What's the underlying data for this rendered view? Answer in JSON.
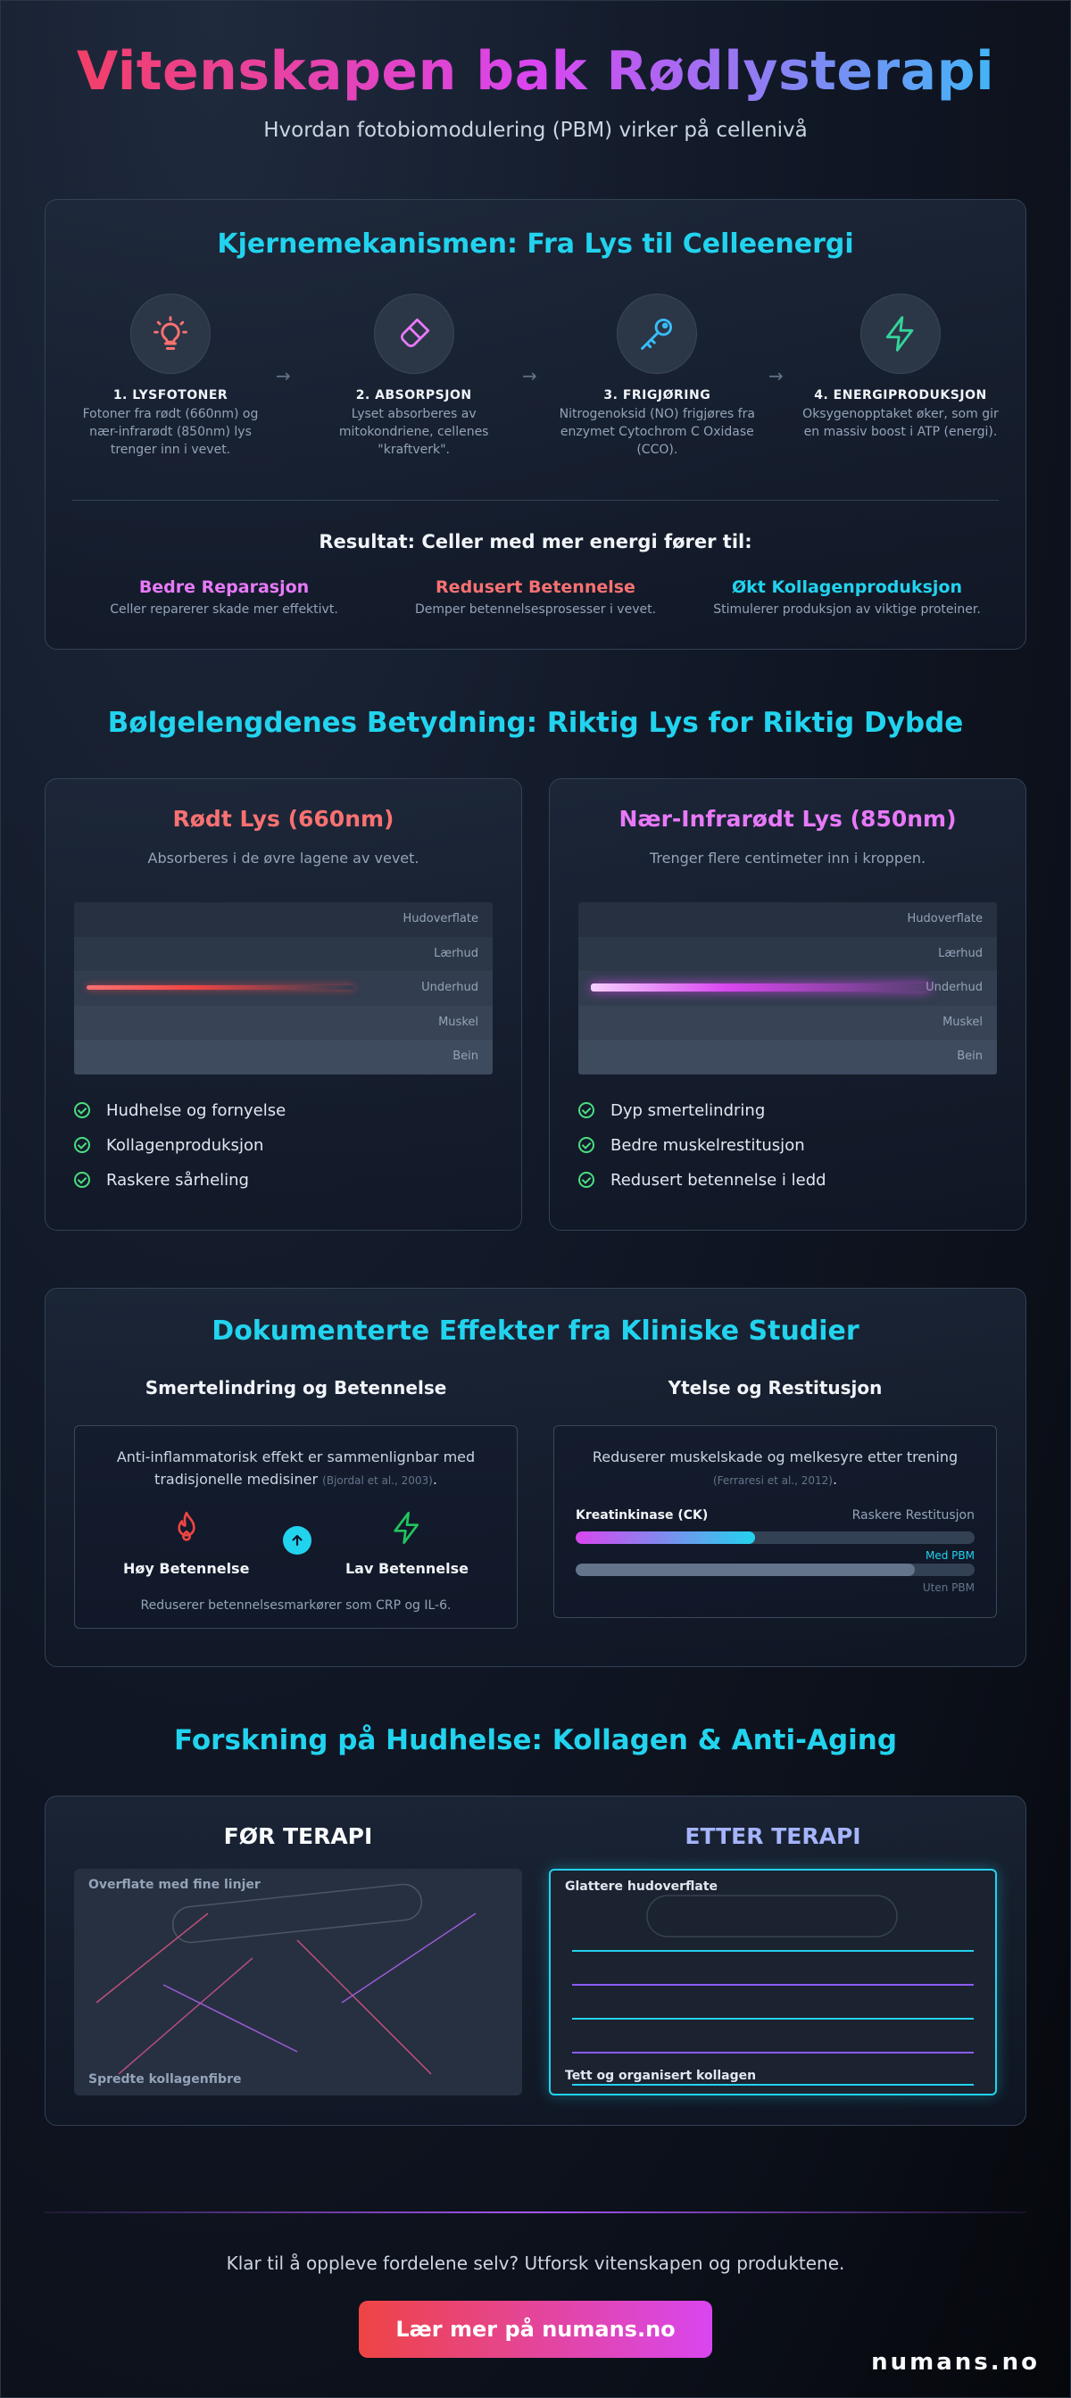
{
  "header": {
    "title": "Vitenskapen bak Rødlysterapi",
    "subtitle": "Hvordan fotobiomodulering (PBM) virker på cellenivå"
  },
  "mechanism": {
    "title": "Kjernemekanismen: Fra Lys til Celleenergi",
    "steps": [
      {
        "icon": "lightbulb-icon",
        "color": "#f87171",
        "title": "1. LYSFOTONER",
        "text": "Fotoner fra rødt (660nm) og nær-infrarødt (850nm) lys trenger inn i vevet."
      },
      {
        "icon": "eraser-icon",
        "color": "#e879f9",
        "title": "2. ABSORPSJON",
        "text": "Lyset absorberes av mitokondriene, cellenes \"kraftverk\"."
      },
      {
        "icon": "key-icon",
        "color": "#38bdf8",
        "title": "3. FRIGJØRING",
        "text": "Nitrogenoksid (NO) frigjøres fra enzymet Cytochrom C Oxidase (CCO)."
      },
      {
        "icon": "lightning-icon",
        "color": "#34d399",
        "title": "4. ENERGIPRODUKSJON",
        "text": "Oksygenopptaket øker, som gir en massiv boost i ATP (energi)."
      }
    ],
    "result_title": "Resultat: Celler med mer energi fører til:",
    "results": [
      {
        "name": "Bedre Reparasjon",
        "desc": "Celler reparerer skade mer effektivt.",
        "color": "#e879f9"
      },
      {
        "name": "Redusert Betennelse",
        "desc": "Demper betennelsesprosesser i vevet.",
        "color": "#f87171"
      },
      {
        "name": "Økt Kollagenproduksjon",
        "desc": "Stimulerer produksjon av viktige proteiner.",
        "color": "#22d3ee"
      }
    ]
  },
  "wavelengths": {
    "title": "Bølgelengdenes Betydning: Riktig Lys for Riktig Dybde",
    "layers": [
      "Hudoverflate",
      "Lærhud",
      "Underhud",
      "Muskel",
      "Bein"
    ],
    "red": {
      "name": "Rødt Lys (660nm)",
      "color": "#f87171",
      "desc": "Absorberes i de øvre lagene av vevet.",
      "benefits": [
        "Hudhelse og fornyelse",
        "Kollagenproduksjon",
        "Raskere sårheling"
      ]
    },
    "nir": {
      "name": "Nær-Infrarødt Lys (850nm)",
      "color": "#e879f9",
      "desc": "Trenger flere centimeter inn i kroppen.",
      "benefits": [
        "Dyp smertelindring",
        "Bedre muskelrestitusjon",
        "Redusert betennelse i ledd"
      ]
    }
  },
  "clinical": {
    "title": "Dokumenterte Effekter fra Kliniske Studier",
    "left": {
      "heading": "Smertelindring og Betennelse",
      "text": "Anti-inflammatorisk effekt er sammenlignbar med tradisjonelle medisiner",
      "cite": "(Bjordal et al., 2003)",
      "high_label": "Høy Betennelse",
      "low_label": "Lav Betennelse",
      "note": "Reduserer betennelsesmarkører som CRP og IL-6."
    },
    "right": {
      "heading": "Ytelse og Restitusjon",
      "text": "Reduserer muskelskade og melkesyre etter trening",
      "cite": "(Ferraresi et al., 2012)",
      "metric_label": "Kreatinkinase (CK)",
      "metric_right": "Raskere Restitusjon",
      "with_label": "Med PBM",
      "without_label": "Uten PBM",
      "with_fraction": 0.45,
      "without_fraction": 0.85
    }
  },
  "skin": {
    "title": "Forskning på Hudhelse: Kollagen & Anti-Aging",
    "before": {
      "heading": "FØR TERAPI",
      "top_label": "Overflate med fine linjer",
      "bottom_label": "Spredte kollagenfibre"
    },
    "after": {
      "heading": "ETTER TERAPI",
      "top_label": "Glattere hudoverflate",
      "bottom_label": "Tett og organisert kollagen"
    }
  },
  "footer": {
    "cta_text": "Klar til å oppleve fordelene selv? Utforsk vitenskapen og produktene.",
    "cta_button": "Lær mer på numans.no",
    "brand": "numans.no"
  }
}
